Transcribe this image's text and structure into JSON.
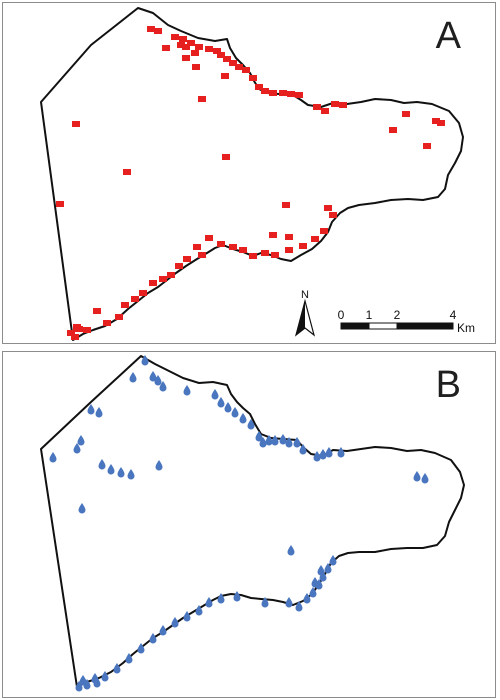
{
  "colors": {
    "outline": "#111111",
    "site_marker_a": "#e5201e",
    "site_marker_b": "#4a76bf",
    "panel_border": "#8c8c8c"
  },
  "panels": [
    {
      "label": "A",
      "marker_icon": "red-square-icon"
    },
    {
      "label": "B",
      "marker_icon": "blue-drop-icon"
    }
  ],
  "north_arrow": {
    "label": "N"
  },
  "scale_bar": {
    "ticks": [
      "0",
      "1",
      "2",
      "4"
    ],
    "tick_km": [
      0,
      1,
      2,
      4
    ],
    "unit": "Km"
  }
}
